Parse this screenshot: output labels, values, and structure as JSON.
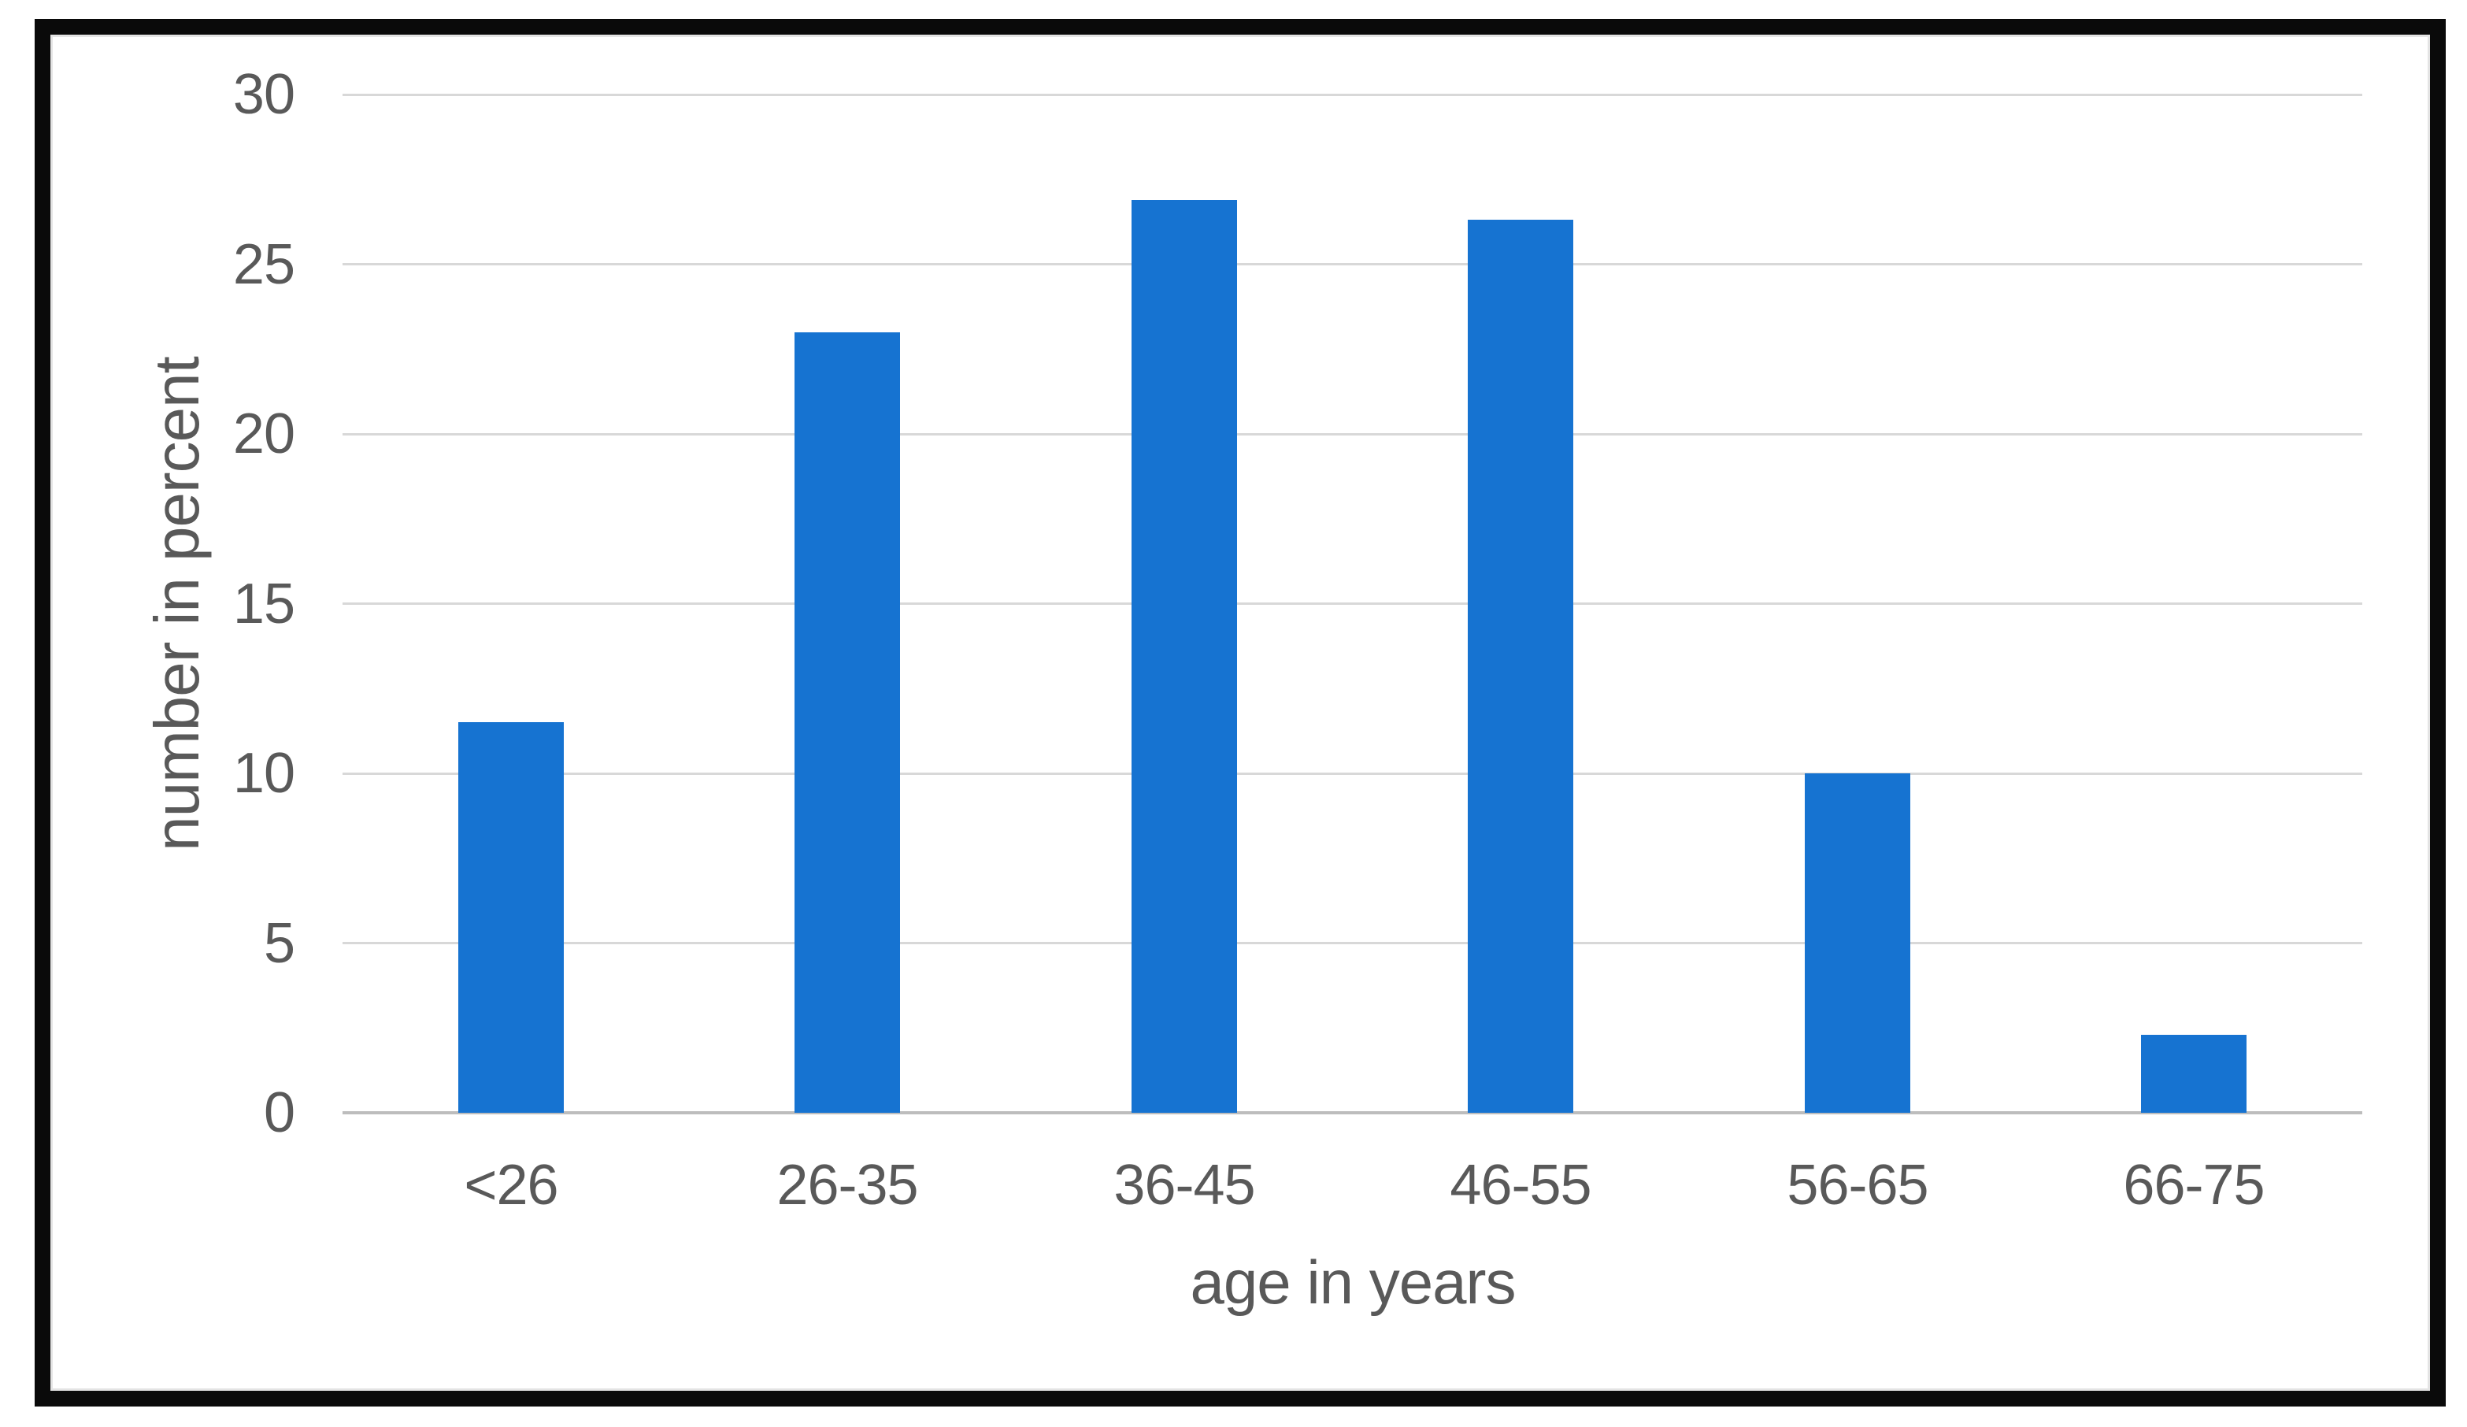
{
  "chart_data": {
    "type": "bar",
    "categories": [
      "<26",
      "26-35",
      "36-45",
      "46-55",
      "56-65",
      "66-75"
    ],
    "values": [
      11.5,
      23,
      26.9,
      26.3,
      10,
      2.3
    ],
    "title": "",
    "xlabel": "age in years",
    "ylabel": "number in percent",
    "ylim": [
      0,
      30
    ],
    "yticks": [
      0,
      5,
      10,
      15,
      20,
      25,
      30
    ],
    "grid": true,
    "legend": "none",
    "colors": {
      "bar": "#1673d1",
      "gridline": "#d8d8d8",
      "axis_line": "#bdbdbd",
      "text": "#595959",
      "frame": "#0a0a0a",
      "background": "#ffffff"
    }
  }
}
